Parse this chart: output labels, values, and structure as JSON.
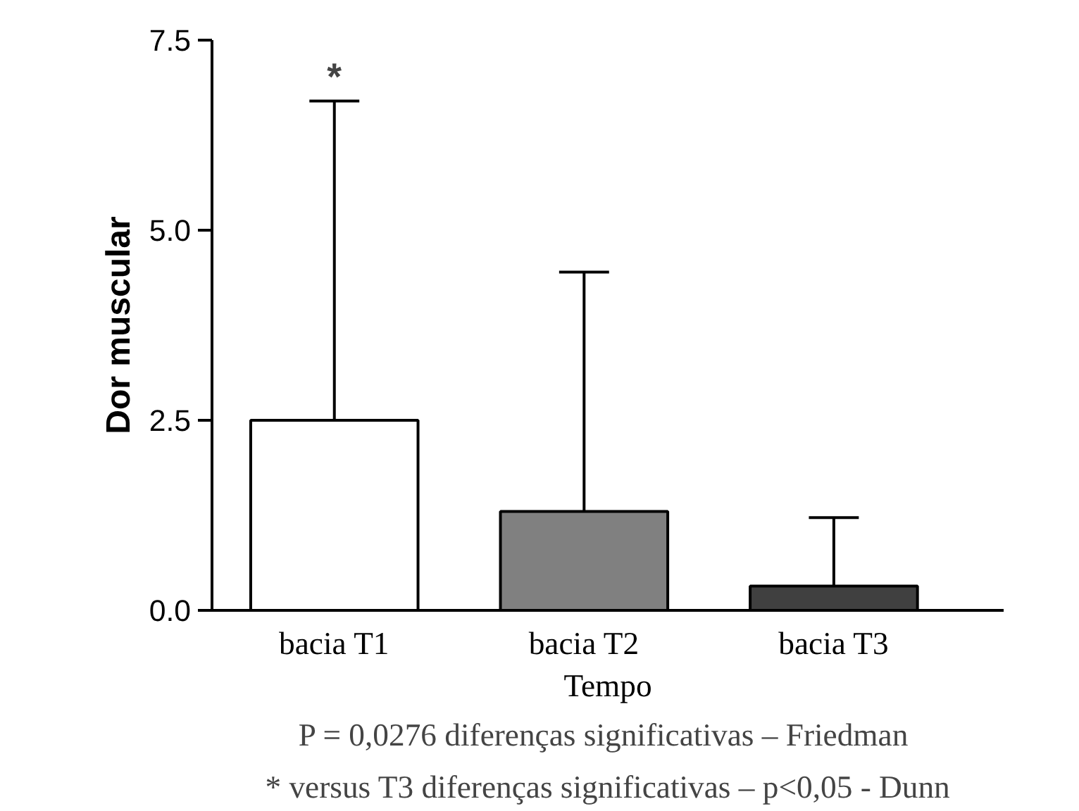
{
  "chart_data": {
    "type": "bar",
    "ylabel": "Dor muscular",
    "xlabel": "Tempo",
    "categories": [
      "bacia T1",
      "bacia T2",
      "bacia T3"
    ],
    "values": [
      2.5,
      1.3,
      0.32
    ],
    "colors": [
      "#ffffff",
      "#808080",
      "#404040"
    ],
    "errors": [
      [
        2.5,
        6.7
      ],
      [
        1.3,
        4.45
      ],
      [
        0.32,
        1.22
      ]
    ],
    "ylim": [
      0,
      7.5
    ],
    "yticks": [
      {
        "value": 0,
        "label": "0.0"
      },
      {
        "value": 2.5,
        "label": "2.5"
      },
      {
        "value": 5,
        "label": "5.0"
      },
      {
        "value": 7.5,
        "label": "7.5"
      }
    ],
    "grid": false,
    "annotations": [
      {
        "text": "*",
        "x": "bacia T1",
        "y": 6.7
      },
      "P = 0,0276  diferenças significativas – Friedman",
      "* versus T3 diferenças significativas – p<0,05 - Dunn"
    ]
  }
}
